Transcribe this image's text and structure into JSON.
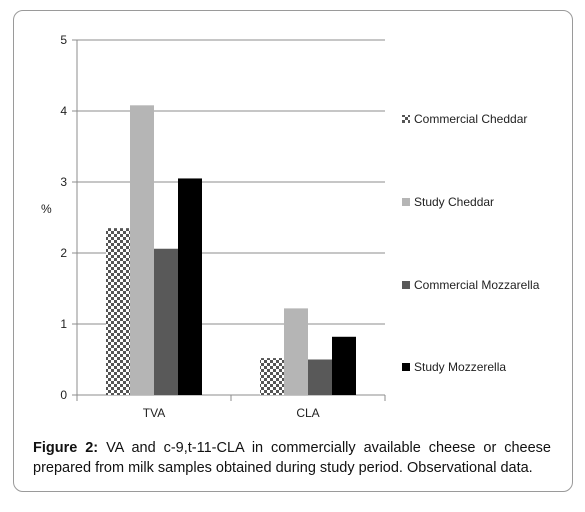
{
  "chart_data": {
    "type": "bar",
    "categories": [
      "TVA",
      "CLA"
    ],
    "series": [
      {
        "name": "Commercial Cheddar",
        "values": [
          2.35,
          0.52
        ],
        "color": "checker"
      },
      {
        "name": "Study Cheddar",
        "values": [
          4.08,
          1.22
        ],
        "color": "#b5b5b5"
      },
      {
        "name": "Commercial Mozzarella",
        "values": [
          2.06,
          0.5
        ],
        "color": "#595959"
      },
      {
        "name": "Study Mozzerella",
        "values": [
          3.05,
          0.82
        ],
        "color": "#000000"
      }
    ],
    "ylabel": "%",
    "xlabel": "",
    "ylim": [
      0,
      5
    ],
    "yticks": [
      "0",
      "1",
      "2",
      "3",
      "4",
      "5"
    ],
    "grid": true,
    "legend_position": "right"
  },
  "caption": {
    "lead": "Figure 2:",
    "text": " VA and c-9,t-11-CLA in commercially available cheese or cheese prepared from milk samples obtained during study period. Observational data."
  }
}
